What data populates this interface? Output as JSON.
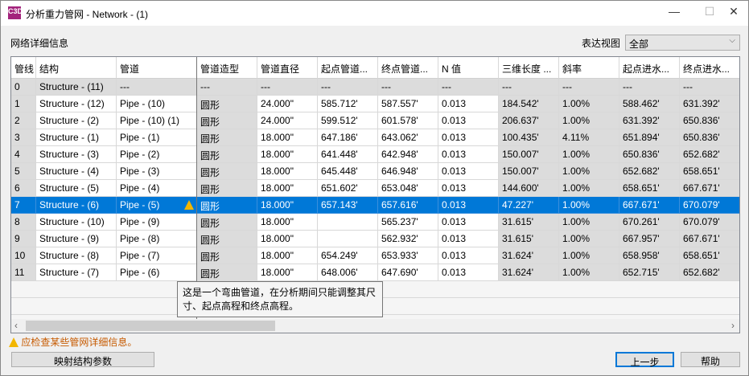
{
  "window": {
    "title": "分析重力管网 - Network - (1)",
    "app_icon": "C3D",
    "minimize": "—",
    "maximize": "☐",
    "close": "✕"
  },
  "section_label": "网络详细信息",
  "view": {
    "label": "表达视图",
    "value": "全部"
  },
  "columns": [
    "管线",
    "结构",
    "管道",
    "管道造型",
    "管道直径",
    "起点管道...",
    "终点管道...",
    "N 值",
    "三维长度 ...",
    "斜率",
    "起点进水...",
    "终点进水..."
  ],
  "rows": [
    [
      "0",
      "Structure - (11)",
      "---",
      "---",
      "---",
      "---",
      "---",
      "---",
      "---",
      "---",
      "---",
      "---"
    ],
    [
      "1",
      "Structure - (12)",
      "Pipe - (10)",
      "圆形",
      "24.000\"",
      "585.712'",
      "587.557'",
      "0.013",
      "184.542'",
      "1.00%",
      "588.462'",
      "631.392'"
    ],
    [
      "2",
      "Structure - (2)",
      "Pipe - (10) (1)",
      "圆形",
      "24.000\"",
      "599.512'",
      "601.578'",
      "0.013",
      "206.637'",
      "1.00%",
      "631.392'",
      "650.836'"
    ],
    [
      "3",
      "Structure - (1)",
      "Pipe - (1)",
      "圆形",
      "18.000\"",
      "647.186'",
      "643.062'",
      "0.013",
      "100.435'",
      "4.11%",
      "651.894'",
      "650.836'"
    ],
    [
      "4",
      "Structure - (3)",
      "Pipe - (2)",
      "圆形",
      "18.000\"",
      "641.448'",
      "642.948'",
      "0.013",
      "150.007'",
      "1.00%",
      "650.836'",
      "652.682'"
    ],
    [
      "5",
      "Structure - (4)",
      "Pipe - (3)",
      "圆形",
      "18.000\"",
      "645.448'",
      "646.948'",
      "0.013",
      "150.007'",
      "1.00%",
      "652.682'",
      "658.651'"
    ],
    [
      "6",
      "Structure - (5)",
      "Pipe - (4)",
      "圆形",
      "18.000\"",
      "651.602'",
      "653.048'",
      "0.013",
      "144.600'",
      "1.00%",
      "658.651'",
      "667.671'"
    ],
    [
      "7",
      "Structure - (6)",
      "Pipe - (5)",
      "圆形",
      "18.000\"",
      "657.143'",
      "657.616'",
      "0.013",
      "47.227'",
      "1.00%",
      "667.671'",
      "670.079'"
    ],
    [
      "8",
      "Structure - (10)",
      "Pipe - (9)",
      "圆形",
      "18.000\"",
      "",
      "565.237'",
      "0.013",
      "31.615'",
      "1.00%",
      "670.261'",
      "670.079'"
    ],
    [
      "9",
      "Structure - (9)",
      "Pipe - (8)",
      "圆形",
      "18.000\"",
      "",
      "562.932'",
      "0.013",
      "31.615'",
      "1.00%",
      "667.957'",
      "667.671'"
    ],
    [
      "10",
      "Structure - (8)",
      "Pipe - (7)",
      "圆形",
      "18.000\"",
      "654.249'",
      "653.933'",
      "0.013",
      "31.624'",
      "1.00%",
      "658.958'",
      "658.651'"
    ],
    [
      "11",
      "Structure - (7)",
      "Pipe - (6)",
      "圆形",
      "18.000\"",
      "648.006'",
      "647.690'",
      "0.013",
      "31.624'",
      "1.00%",
      "652.715'",
      "652.682'"
    ]
  ],
  "selected_row": 7,
  "tooltip": "这是一个弯曲管道，在分析期间只能调整其尺寸、起点高程和终点高程。",
  "warning": "应检查某些管网详细信息。",
  "buttons": {
    "map": "映射结构参数",
    "back": "上一步",
    "help": "帮助"
  },
  "colors": {
    "selection": "#0078d7",
    "warning": "#c65a00"
  }
}
